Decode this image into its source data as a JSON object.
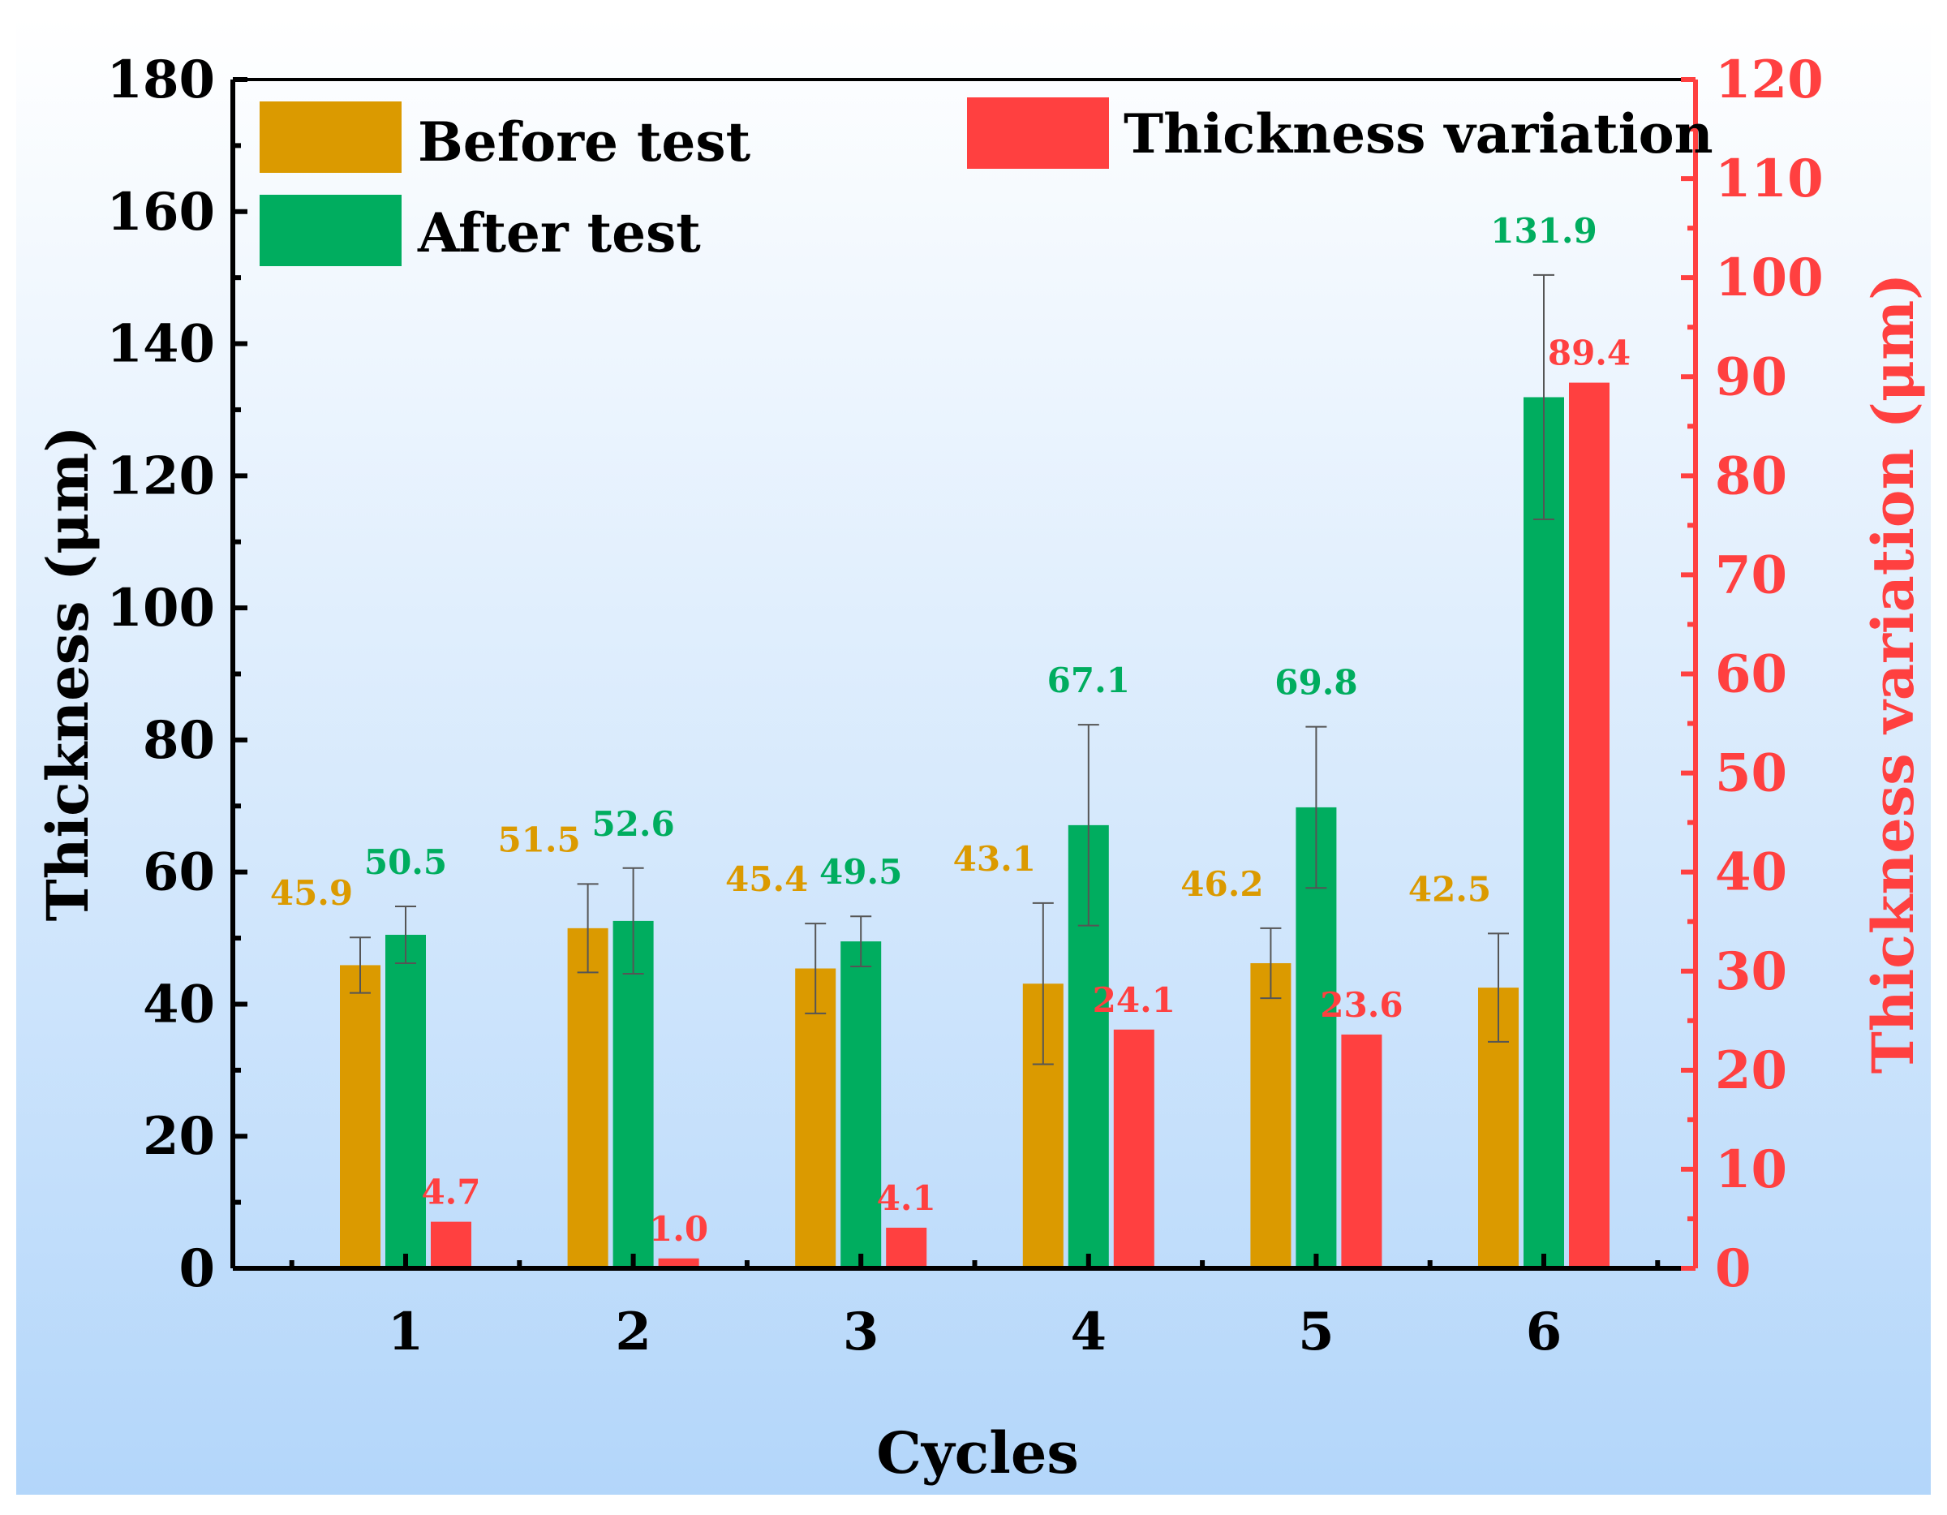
{
  "chart_data": {
    "type": "bar",
    "categories": [
      "1",
      "2",
      "3",
      "4",
      "5",
      "6"
    ],
    "xlabel": "Cycles",
    "ylabel": "Thickness (μm)",
    "y2label": "Thickness variation (μm)",
    "ylim": [
      0,
      180
    ],
    "y2lim": [
      0,
      120
    ],
    "yticks": [
      "0",
      "20",
      "40",
      "60",
      "80",
      "100",
      "120",
      "140",
      "160",
      "180"
    ],
    "y2ticks": [
      "0",
      "10",
      "20",
      "30",
      "40",
      "50",
      "60",
      "70",
      "80",
      "90",
      "100",
      "110",
      "120"
    ],
    "grid": false,
    "legend_position": "top",
    "series": [
      {
        "name": "Before test",
        "axis": "left",
        "color": "#DB9A00",
        "values": [
          45.9,
          51.5,
          45.4,
          43.1,
          46.2,
          42.5
        ],
        "labels": [
          "45.9",
          "51.5",
          "45.4",
          "43.1",
          "46.2",
          "42.5"
        ],
        "error": [
          4.2,
          6.7,
          6.8,
          12.2,
          5.3,
          8.2
        ]
      },
      {
        "name": "After test",
        "axis": "left",
        "color": "#00AD5F",
        "values": [
          50.5,
          52.6,
          49.5,
          67.1,
          69.8,
          131.9
        ],
        "labels": [
          "50.5",
          "52.6",
          "49.5",
          "67.1",
          "69.8",
          "131.9"
        ],
        "error": [
          4.3,
          8.0,
          3.8,
          15.2,
          12.2,
          18.5
        ]
      },
      {
        "name": "Thickness variation",
        "axis": "right",
        "color": "#FF4040",
        "values": [
          4.7,
          1.0,
          4.1,
          24.1,
          23.6,
          89.4
        ],
        "labels": [
          "4.7",
          "1.0",
          "4.1",
          "24.1",
          "23.6",
          "89.4"
        ]
      }
    ],
    "colors": {
      "axis": "#000000",
      "right_axis": "#FF4040",
      "error_bar": "#555555",
      "background_top": "#FFFFFF",
      "background_bottom": "#B3D6FA"
    }
  }
}
